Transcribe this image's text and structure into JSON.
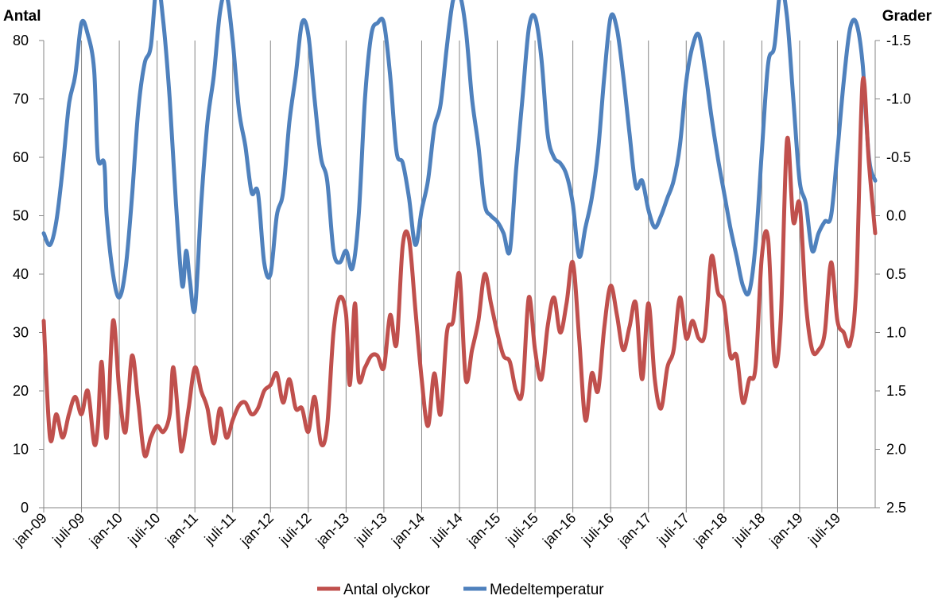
{
  "chart_data": {
    "type": "line",
    "y_left_label": "Antal",
    "y_right_label": "Grader",
    "y_left_ticks": [
      "0",
      "10",
      "20",
      "30",
      "40",
      "50",
      "60",
      "70",
      "80"
    ],
    "y_right_ticks": [
      "2.5",
      "2.0",
      "1.5",
      "1.0",
      "0.5",
      "0.0",
      "-0.5",
      "-1.0",
      "-1.5"
    ],
    "ylim_left": [
      0,
      80
    ],
    "ylim_right": [
      2.5,
      -1.5
    ],
    "right_axis_reversed": true,
    "x_ticks": [
      "jan-09",
      "juli-09",
      "jan-10",
      "juli-10",
      "jan-11",
      "juli-11",
      "jan-12",
      "juli-12",
      "jan-13",
      "juli-13",
      "jan-14",
      "juli-14",
      "jan-15",
      "juli-15",
      "jan-16",
      "juli-16",
      "jan-17",
      "juli-17",
      "jan-18",
      "juli-18",
      "jan-19",
      "juli-19"
    ],
    "grid": "vertical",
    "legend_position": "bottom",
    "colors": {
      "accidents": "#c0504d",
      "temperature": "#4f81bd"
    },
    "series": [
      {
        "name": "Antal olyckor",
        "axis": "left",
        "points": [
          [
            0,
            32
          ],
          [
            0.5,
            12
          ],
          [
            1,
            16
          ],
          [
            1.5,
            12
          ],
          [
            2,
            16
          ],
          [
            2.5,
            19
          ],
          [
            3,
            16
          ],
          [
            3.5,
            20
          ],
          [
            4,
            11
          ],
          [
            4.3,
            14
          ],
          [
            4.6,
            25
          ],
          [
            5,
            12
          ],
          [
            5.5,
            32
          ],
          [
            6,
            20
          ],
          [
            6.5,
            13
          ],
          [
            7,
            26
          ],
          [
            7.5,
            18
          ],
          [
            8,
            9
          ],
          [
            8.5,
            12
          ],
          [
            9,
            14
          ],
          [
            9.5,
            13
          ],
          [
            10,
            16
          ],
          [
            10.3,
            24
          ],
          [
            10.8,
            12
          ],
          [
            11,
            10
          ],
          [
            11.5,
            17
          ],
          [
            12,
            24
          ],
          [
            12.5,
            20
          ],
          [
            13,
            17
          ],
          [
            13.5,
            11
          ],
          [
            14,
            17
          ],
          [
            14.5,
            12
          ],
          [
            15,
            15
          ],
          [
            15.5,
            17.5
          ],
          [
            16,
            18
          ],
          [
            16.5,
            16
          ],
          [
            17,
            17
          ],
          [
            17.5,
            20
          ],
          [
            18,
            21
          ],
          [
            18.5,
            23
          ],
          [
            19,
            18
          ],
          [
            19.5,
            22
          ],
          [
            20,
            17
          ],
          [
            20.5,
            17
          ],
          [
            21,
            13
          ],
          [
            21.5,
            19
          ],
          [
            22,
            11
          ],
          [
            22.5,
            14
          ],
          [
            23,
            30
          ],
          [
            23.5,
            36
          ],
          [
            24,
            33
          ],
          [
            24.3,
            21
          ],
          [
            24.7,
            35
          ],
          [
            25,
            22
          ],
          [
            25.5,
            24
          ],
          [
            26,
            26
          ],
          [
            26.5,
            26
          ],
          [
            27,
            24
          ],
          [
            27.5,
            33
          ],
          [
            28,
            28
          ],
          [
            28.5,
            45
          ],
          [
            29,
            46
          ],
          [
            29.5,
            34
          ],
          [
            30,
            22
          ],
          [
            30.5,
            14
          ],
          [
            31,
            23
          ],
          [
            31.5,
            16
          ],
          [
            32,
            30
          ],
          [
            32.5,
            32
          ],
          [
            33,
            40
          ],
          [
            33.5,
            22
          ],
          [
            34,
            27
          ],
          [
            34.5,
            32
          ],
          [
            35,
            40
          ],
          [
            35.5,
            35
          ],
          [
            36,
            30
          ],
          [
            36.5,
            26
          ],
          [
            37,
            25
          ],
          [
            37.5,
            20
          ],
          [
            38,
            20
          ],
          [
            38.5,
            36
          ],
          [
            39,
            27
          ],
          [
            39.5,
            22
          ],
          [
            40,
            31
          ],
          [
            40.5,
            36
          ],
          [
            41,
            30
          ],
          [
            41.5,
            35
          ],
          [
            42,
            42
          ],
          [
            42.5,
            29
          ],
          [
            43,
            15
          ],
          [
            43.5,
            23
          ],
          [
            44,
            20
          ],
          [
            44.5,
            31
          ],
          [
            45,
            38
          ],
          [
            45.5,
            33
          ],
          [
            46,
            27
          ],
          [
            46.5,
            31
          ],
          [
            47,
            35
          ],
          [
            47.5,
            22
          ],
          [
            48,
            35
          ],
          [
            48.5,
            22
          ],
          [
            49,
            17
          ],
          [
            49.5,
            24
          ],
          [
            50,
            27
          ],
          [
            50.5,
            36
          ],
          [
            51,
            29
          ],
          [
            51.5,
            32
          ],
          [
            52,
            29
          ],
          [
            52.5,
            30
          ],
          [
            53,
            43
          ],
          [
            53.5,
            37
          ],
          [
            54,
            35
          ],
          [
            54.5,
            26
          ],
          [
            55,
            26
          ],
          [
            55.5,
            18
          ],
          [
            56,
            22
          ],
          [
            56.5,
            24
          ],
          [
            57,
            43
          ],
          [
            57.5,
            46
          ],
          [
            58,
            25
          ],
          [
            58.5,
            32
          ],
          [
            59,
            63
          ],
          [
            59.5,
            49
          ],
          [
            60,
            52
          ],
          [
            60.5,
            35
          ],
          [
            61,
            27
          ],
          [
            61.5,
            27
          ],
          [
            62,
            30
          ],
          [
            62.5,
            42
          ],
          [
            63,
            32
          ],
          [
            63.5,
            30
          ],
          [
            64,
            28
          ],
          [
            64.5,
            38
          ],
          [
            65,
            73
          ],
          [
            65.5,
            59
          ],
          [
            66,
            47
          ]
        ]
      },
      {
        "name": "Medeltemperatur",
        "axis": "right",
        "points": [
          [
            0,
            0.15
          ],
          [
            0.5,
            0.25
          ],
          [
            1,
            0.05
          ],
          [
            1.5,
            -0.4
          ],
          [
            2,
            -0.95
          ],
          [
            2.5,
            -1.2
          ],
          [
            3,
            -1.65
          ],
          [
            3.5,
            -1.55
          ],
          [
            4,
            -1.25
          ],
          [
            4.3,
            -0.5
          ],
          [
            4.8,
            -0.45
          ],
          [
            5,
            0.0
          ],
          [
            5.5,
            0.5
          ],
          [
            6,
            0.7
          ],
          [
            6.5,
            0.45
          ],
          [
            7,
            -0.15
          ],
          [
            7.5,
            -0.9
          ],
          [
            8,
            -1.3
          ],
          [
            8.5,
            -1.45
          ],
          [
            9,
            -2.0
          ],
          [
            9.5,
            -1.65
          ],
          [
            10,
            -1.0
          ],
          [
            10.5,
            -0.1
          ],
          [
            11,
            0.6
          ],
          [
            11.3,
            0.3
          ],
          [
            11.6,
            0.55
          ],
          [
            12,
            0.8
          ],
          [
            12.5,
            -0.1
          ],
          [
            13,
            -0.8
          ],
          [
            13.5,
            -1.2
          ],
          [
            14,
            -1.75
          ],
          [
            14.5,
            -1.9
          ],
          [
            15,
            -1.5
          ],
          [
            15.5,
            -0.9
          ],
          [
            16,
            -0.6
          ],
          [
            16.5,
            -0.2
          ],
          [
            17,
            -0.2
          ],
          [
            17.5,
            0.4
          ],
          [
            18,
            0.5
          ],
          [
            18.5,
            0.0
          ],
          [
            19,
            -0.2
          ],
          [
            19.5,
            -0.8
          ],
          [
            20,
            -1.2
          ],
          [
            20.5,
            -1.65
          ],
          [
            21,
            -1.55
          ],
          [
            21.5,
            -1.0
          ],
          [
            22,
            -0.5
          ],
          [
            22.5,
            -0.3
          ],
          [
            23,
            0.3
          ],
          [
            23.5,
            0.4
          ],
          [
            24,
            0.3
          ],
          [
            24.5,
            0.45
          ],
          [
            25,
            0.0
          ],
          [
            25.5,
            -1.0
          ],
          [
            26,
            -1.55
          ],
          [
            26.5,
            -1.65
          ],
          [
            27,
            -1.65
          ],
          [
            27.5,
            -1.2
          ],
          [
            28,
            -0.55
          ],
          [
            28.5,
            -0.45
          ],
          [
            29,
            -0.15
          ],
          [
            29.5,
            0.25
          ],
          [
            30,
            -0.05
          ],
          [
            30.5,
            -0.3
          ],
          [
            31,
            -0.75
          ],
          [
            31.5,
            -0.95
          ],
          [
            32,
            -1.45
          ],
          [
            32.5,
            -1.85
          ],
          [
            33,
            -1.9
          ],
          [
            33.5,
            -1.6
          ],
          [
            34,
            -1.0
          ],
          [
            34.5,
            -0.6
          ],
          [
            35,
            -0.1
          ],
          [
            35.5,
            0.0
          ],
          [
            36,
            0.05
          ],
          [
            36.5,
            0.15
          ],
          [
            37,
            0.3
          ],
          [
            37.5,
            -0.4
          ],
          [
            38,
            -1.0
          ],
          [
            38.5,
            -1.6
          ],
          [
            39,
            -1.7
          ],
          [
            39.5,
            -1.35
          ],
          [
            40,
            -0.7
          ],
          [
            40.5,
            -0.5
          ],
          [
            41,
            -0.45
          ],
          [
            41.5,
            -0.35
          ],
          [
            42,
            -0.1
          ],
          [
            42.5,
            0.35
          ],
          [
            43,
            0.1
          ],
          [
            43.5,
            -0.15
          ],
          [
            44,
            -0.55
          ],
          [
            44.5,
            -1.2
          ],
          [
            45,
            -1.7
          ],
          [
            45.5,
            -1.6
          ],
          [
            46,
            -1.2
          ],
          [
            46.5,
            -0.7
          ],
          [
            47,
            -0.25
          ],
          [
            47.5,
            -0.3
          ],
          [
            48,
            -0.05
          ],
          [
            48.5,
            0.1
          ],
          [
            49,
            0.0
          ],
          [
            49.5,
            -0.15
          ],
          [
            50,
            -0.3
          ],
          [
            50.5,
            -0.6
          ],
          [
            51,
            -1.15
          ],
          [
            51.5,
            -1.45
          ],
          [
            52,
            -1.55
          ],
          [
            52.5,
            -1.25
          ],
          [
            53,
            -0.85
          ],
          [
            53.5,
            -0.5
          ],
          [
            54,
            -0.2
          ],
          [
            54.5,
            0.1
          ],
          [
            55,
            0.35
          ],
          [
            55.5,
            0.6
          ],
          [
            56,
            0.65
          ],
          [
            56.5,
            0.25
          ],
          [
            57,
            -0.55
          ],
          [
            57.5,
            -1.3
          ],
          [
            58,
            -1.45
          ],
          [
            58.5,
            -1.95
          ],
          [
            59,
            -1.7
          ],
          [
            59.5,
            -1.0
          ],
          [
            60,
            -0.3
          ],
          [
            60.5,
            -0.1
          ],
          [
            61,
            0.3
          ],
          [
            61.5,
            0.15
          ],
          [
            62,
            0.05
          ],
          [
            62.5,
            0.0
          ],
          [
            63,
            -0.55
          ],
          [
            63.5,
            -1.15
          ],
          [
            64,
            -1.6
          ],
          [
            64.5,
            -1.65
          ],
          [
            65,
            -1.3
          ],
          [
            65.5,
            -0.5
          ],
          [
            66,
            -0.3
          ]
        ]
      }
    ]
  }
}
